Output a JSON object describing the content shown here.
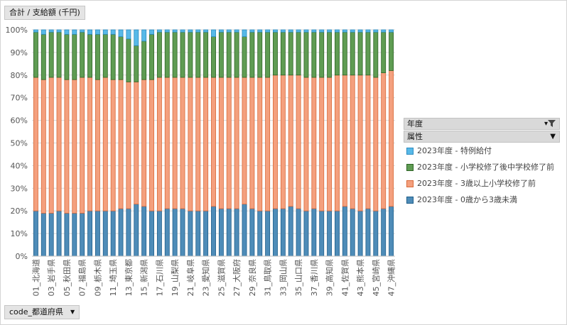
{
  "value_button": "合計 / 支給額 (千円)",
  "axis_button": "code_都道府県",
  "legend_panel": {
    "year_label": "年度",
    "attr_label": "属性",
    "filter_icon": "filter-icon",
    "dropdown_icon": "chevron-down-icon"
  },
  "colors": {
    "a": "#4e8cb8",
    "b": "#f4a07e",
    "c": "#5f9c53",
    "d": "#57b9e8"
  },
  "chart_data": {
    "type": "bar",
    "stacked": "percent",
    "ylim": [
      0,
      1
    ],
    "yticks": [
      "0%",
      "10%",
      "20%",
      "30%",
      "40%",
      "50%",
      "60%",
      "70%",
      "80%",
      "90%",
      "100%"
    ],
    "grid": true,
    "legend_position": "right",
    "xtick_labels": [
      "01_北海道",
      "03_岩手県",
      "05_秋田県",
      "07_福島県",
      "09_栃木県",
      "11_埼玉県",
      "13_東京都",
      "15_新潟県",
      "17_石川県",
      "19_山梨県",
      "21_岐阜県",
      "23_愛知県",
      "25_滋賀県",
      "27_大阪府",
      "29_奈良県",
      "31_鳥取県",
      "33_岡山県",
      "35_山口県",
      "37_香川県",
      "39_高知県",
      "41_佐賀県",
      "43_熊本県",
      "45_宮崎県",
      "47_沖縄県"
    ],
    "categories": [
      "01",
      "02",
      "03",
      "04",
      "05",
      "06",
      "07",
      "08",
      "09",
      "10",
      "11",
      "12",
      "13",
      "14",
      "15",
      "16",
      "17",
      "18",
      "19",
      "20",
      "21",
      "22",
      "23",
      "24",
      "25",
      "26",
      "27",
      "28",
      "29",
      "30",
      "31",
      "32",
      "33",
      "34",
      "35",
      "36",
      "37",
      "38",
      "39",
      "40",
      "41",
      "42",
      "43",
      "44",
      "45",
      "46",
      "47"
    ],
    "series": [
      {
        "name": "2023年度 - 0歳から3歳未満",
        "values": [
          0.2,
          0.19,
          0.19,
          0.2,
          0.19,
          0.19,
          0.19,
          0.2,
          0.2,
          0.2,
          0.2,
          0.21,
          0.21,
          0.23,
          0.22,
          0.2,
          0.2,
          0.21,
          0.21,
          0.21,
          0.2,
          0.2,
          0.2,
          0.22,
          0.21,
          0.21,
          0.21,
          0.23,
          0.21,
          0.2,
          0.2,
          0.21,
          0.21,
          0.22,
          0.21,
          0.2,
          0.21,
          0.2,
          0.2,
          0.2,
          0.22,
          0.21,
          0.2,
          0.21,
          0.2,
          0.21,
          0.22
        ]
      },
      {
        "name": "2023年度 - 3歳以上小学校修了前",
        "values": [
          0.59,
          0.59,
          0.6,
          0.59,
          0.59,
          0.59,
          0.6,
          0.59,
          0.58,
          0.59,
          0.58,
          0.57,
          0.56,
          0.54,
          0.56,
          0.58,
          0.59,
          0.58,
          0.58,
          0.58,
          0.59,
          0.59,
          0.59,
          0.57,
          0.58,
          0.58,
          0.58,
          0.56,
          0.58,
          0.59,
          0.59,
          0.59,
          0.59,
          0.58,
          0.59,
          0.59,
          0.58,
          0.59,
          0.59,
          0.6,
          0.58,
          0.59,
          0.6,
          0.59,
          0.59,
          0.6,
          0.6
        ]
      },
      {
        "name": "2023年度 - 小学校修了後中学校修了前",
        "values": [
          0.2,
          0.2,
          0.2,
          0.2,
          0.2,
          0.2,
          0.2,
          0.19,
          0.2,
          0.19,
          0.2,
          0.19,
          0.19,
          0.16,
          0.17,
          0.2,
          0.2,
          0.2,
          0.2,
          0.2,
          0.2,
          0.2,
          0.2,
          0.18,
          0.2,
          0.2,
          0.2,
          0.18,
          0.2,
          0.2,
          0.2,
          0.19,
          0.19,
          0.19,
          0.19,
          0.2,
          0.2,
          0.2,
          0.2,
          0.19,
          0.19,
          0.19,
          0.19,
          0.19,
          0.2,
          0.18,
          0.17
        ]
      },
      {
        "name": "2023年度 - 特例給付",
        "values": [
          0.01,
          0.02,
          0.01,
          0.01,
          0.02,
          0.02,
          0.01,
          0.02,
          0.02,
          0.02,
          0.02,
          0.03,
          0.04,
          0.07,
          0.05,
          0.02,
          0.01,
          0.01,
          0.01,
          0.01,
          0.01,
          0.01,
          0.01,
          0.03,
          0.01,
          0.01,
          0.01,
          0.03,
          0.01,
          0.01,
          0.01,
          0.01,
          0.01,
          0.01,
          0.01,
          0.01,
          0.01,
          0.01,
          0.01,
          0.01,
          0.01,
          0.01,
          0.01,
          0.01,
          0.01,
          0.01,
          0.01
        ]
      }
    ]
  }
}
